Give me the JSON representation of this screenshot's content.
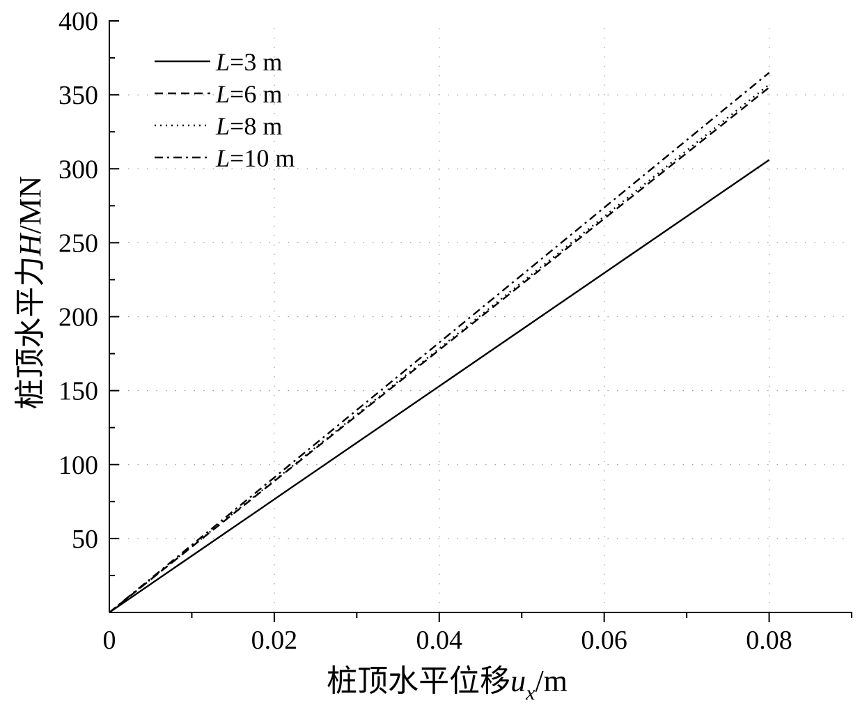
{
  "chart_data": {
    "type": "line",
    "title": "",
    "xlabel": {
      "prefix": "桩顶水平位移",
      "symbol": "u",
      "subscript": "x",
      "unit": "/m"
    },
    "ylabel": {
      "prefix": "桩顶水平力",
      "symbol": "H",
      "unit": "/MN"
    },
    "xlim": [
      0,
      0.09
    ],
    "ylim": [
      0,
      400
    ],
    "x_ticks": [
      0,
      0.02,
      0.04,
      0.06,
      0.08
    ],
    "x_tick_labels": [
      "0",
      "0.02",
      "0.04",
      "0.06",
      "0.08"
    ],
    "y_ticks": [
      50,
      100,
      150,
      200,
      250,
      300,
      350,
      400
    ],
    "y_tick_labels": [
      "50",
      "100",
      "150",
      "200",
      "250",
      "300",
      "350",
      "400"
    ],
    "grid": true,
    "legend_position": "top-left",
    "series": [
      {
        "name": "L=3 m",
        "label_symbol": "L",
        "label_rest": "=3 m",
        "dash": "solid",
        "x": [
          0,
          0.08
        ],
        "y": [
          0,
          306
        ]
      },
      {
        "name": "L=6 m",
        "label_symbol": "L",
        "label_rest": "=6 m",
        "dash": "dashed",
        "x": [
          0,
          0.08
        ],
        "y": [
          0,
          355
        ]
      },
      {
        "name": "L=8 m",
        "label_symbol": "L",
        "label_rest": "=8 m",
        "dash": "dotted",
        "x": [
          0,
          0.08
        ],
        "y": [
          0,
          357
        ]
      },
      {
        "name": "L=10 m",
        "label_symbol": "L",
        "label_rest": "=10 m",
        "dash": "dash-dot",
        "x": [
          0,
          0.08
        ],
        "y": [
          0,
          365
        ]
      }
    ]
  }
}
